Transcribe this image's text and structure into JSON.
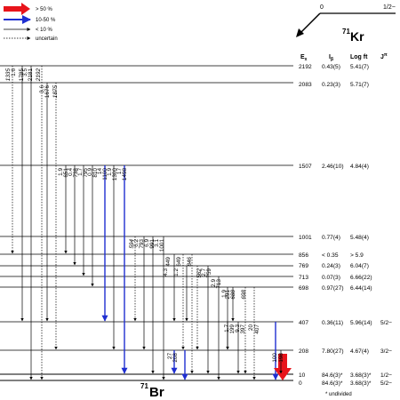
{
  "legend": {
    "items": [
      {
        "label": "> 50 %",
        "style": "red"
      },
      {
        "label": "10-50 %",
        "style": "blue"
      },
      {
        "label": "< 10 %",
        "style": "thin"
      },
      {
        "label": "uncertain",
        "style": "dotted"
      }
    ]
  },
  "parent": {
    "mass": "71",
    "element": "Kr",
    "level_left": "0",
    "spin": "1/2−"
  },
  "daughter": {
    "mass": "71",
    "element": "Br"
  },
  "columns": {
    "energy": "E",
    "energy_sub": "x",
    "ib": "I",
    "ib_sub": "β",
    "logft": "Log ft",
    "jpi": "J",
    "jpi_sup": "π"
  },
  "footnote": "* undivided",
  "levels": [
    {
      "energy": "2192",
      "ib": "0.43(5)",
      "logft": "5.41(7)",
      "jpi": ""
    },
    {
      "energy": "2083",
      "ib": "0.23(3)",
      "logft": "5.71(7)",
      "jpi": ""
    },
    {
      "energy": "1507",
      "ib": "2.46(10)",
      "logft": "4.84(4)",
      "jpi": ""
    },
    {
      "energy": "1001",
      "ib": "0.77(4)",
      "logft": "5.48(4)",
      "jpi": ""
    },
    {
      "energy": "856",
      "ib": "< 0.35",
      "logft": "> 5.9",
      "jpi": ""
    },
    {
      "energy": "769",
      "ib": "0.24(3)",
      "logft": "6.04(7)",
      "jpi": ""
    },
    {
      "energy": "713",
      "ib": "0.07(3)",
      "logft": "6.66(22)",
      "jpi": ""
    },
    {
      "energy": "698",
      "ib": "0.97(27)",
      "logft": "6.44(14)",
      "jpi": ""
    },
    {
      "energy": "407",
      "ib": "0.36(11)",
      "logft": "5.96(14)",
      "jpi": "5/2−"
    },
    {
      "energy": "208",
      "ib": "7.80(27)",
      "logft": "4.67(4)",
      "jpi": "3/2−"
    },
    {
      "energy": "10",
      "ib": "84.6(3)*",
      "logft": "3.68(3)*",
      "jpi": "1/2−"
    },
    {
      "energy": "0",
      "ib": "84.6(3)*",
      "logft": "3.68(3)*",
      "jpi": "5/2−"
    }
  ],
  "transitions": [
    {
      "label": "1335",
      "from": "2192",
      "to": "856",
      "style": "dotted",
      "italic": true
    },
    {
      "label": "1.6",
      "from": "2192",
      "to": "407",
      "style": "thin",
      "italic": false
    },
    {
      "label": "1785",
      "from": "2192",
      "to": "407",
      "style": "thin",
      "italic": false
    },
    {
      "label": "3.5",
      "from": "2192",
      "to": "0",
      "style": "thin",
      "italic": false
    },
    {
      "label": "2181",
      "from": "2192",
      "to": "10",
      "style": "thin",
      "italic": false
    },
    {
      "label": "2192",
      "from": "2192",
      "to": "0",
      "style": "dotted",
      "italic": true
    },
    {
      "label": "3.6",
      "from": "2083",
      "to": "407",
      "style": "thin",
      "italic": false
    },
    {
      "label": "1676",
      "from": "2083",
      "to": "407",
      "style": "thin",
      "italic": false
    },
    {
      "label": "1875",
      "from": "2083",
      "to": "208",
      "style": "dotted",
      "italic": true
    },
    {
      "label": "1.9",
      "from": "1507",
      "to": "856",
      "style": "thin",
      "italic": false
    },
    {
      "label": "651",
      "from": "1507",
      "to": "856",
      "style": "thin",
      "italic": false
    },
    {
      "label": "0.4",
      "from": "1507",
      "to": "769",
      "style": "thin",
      "italic": false
    },
    {
      "label": "738",
      "from": "1507",
      "to": "769",
      "style": "thin",
      "italic": false
    },
    {
      "label": "1.7",
      "from": "1507",
      "to": "713",
      "style": "thin",
      "italic": false
    },
    {
      "label": "795",
      "from": "1507",
      "to": "713",
      "style": "thin",
      "italic": false
    },
    {
      "label": "0.9",
      "from": "1507",
      "to": "698",
      "style": "thin",
      "italic": false
    },
    {
      "label": "810",
      "from": "1507",
      "to": "698",
      "style": "thin",
      "italic": false
    },
    {
      "label": "14",
      "from": "1507",
      "to": "407",
      "style": "blue",
      "italic": false
    },
    {
      "label": "1100",
      "from": "1507",
      "to": "407",
      "style": "blue",
      "italic": false
    },
    {
      "label": "1.9",
      "from": "1507",
      "to": "208",
      "style": "thin",
      "italic": false
    },
    {
      "label": "1300",
      "from": "1507",
      "to": "208",
      "style": "thin",
      "italic": false
    },
    {
      "label": "17",
      "from": "1507",
      "to": "10",
      "style": "blue",
      "italic": false
    },
    {
      "label": "1498",
      "from": "1507",
      "to": "10",
      "style": "blue",
      "italic": false
    },
    {
      "label": "594",
      "from": "1001",
      "to": "407",
      "style": "dotted",
      "italic": true
    },
    {
      "label": "6.2",
      "from": "1001",
      "to": "208",
      "style": "thin",
      "italic": false
    },
    {
      "label": "793",
      "from": "1001",
      "to": "208",
      "style": "thin",
      "italic": false
    },
    {
      "label": "6.9",
      "from": "1001",
      "to": "10",
      "style": "thin",
      "italic": false
    },
    {
      "label": "991",
      "from": "1001",
      "to": "10",
      "style": "thin",
      "italic": false
    },
    {
      "label": "3.1",
      "from": "1001",
      "to": "0",
      "style": "thin",
      "italic": false
    },
    {
      "label": "1001",
      "from": "1001",
      "to": "0",
      "style": "thin",
      "italic": false
    },
    {
      "label": "449",
      "from": "856",
      "to": "407",
      "style": "thin",
      "italic": false
    },
    {
      "label": "649",
      "from": "856",
      "to": "208",
      "style": "dotted",
      "italic": false
    },
    {
      "label": "846",
      "from": "856",
      "to": "10",
      "style": "dotted",
      "italic": true
    },
    {
      "label": "4.3",
      "from": "769",
      "to": "407",
      "style": "thin",
      "italic": false
    },
    {
      "label": "1.2",
      "from": "769",
      "to": "407",
      "style": "thin",
      "italic": false
    },
    {
      "label": "562",
      "from": "769",
      "to": "208",
      "style": "dotted",
      "italic": true
    },
    {
      "label": "2.7",
      "from": "769",
      "to": "10",
      "style": "thin",
      "italic": false
    },
    {
      "label": "759",
      "from": "769",
      "to": "10",
      "style": "thin",
      "italic": false
    },
    {
      "label": "2.9",
      "from": "713",
      "to": "0",
      "style": "thin",
      "italic": false
    },
    {
      "label": "713",
      "from": "713",
      "to": "0",
      "style": "thin",
      "italic": false
    },
    {
      "label": "1.9",
      "from": "698",
      "to": "208",
      "style": "thin",
      "italic": false
    },
    {
      "label": "291",
      "from": "698",
      "to": "407",
      "style": "thin",
      "italic": false
    },
    {
      "label": "688",
      "from": "698",
      "to": "10",
      "style": "dotted",
      "italic": true
    },
    {
      "label": "698",
      "from": "698",
      "to": "0",
      "style": "dotted",
      "italic": true
    },
    {
      "label": "1.7",
      "from": "407",
      "to": "208",
      "style": "thin",
      "italic": false
    },
    {
      "label": "199",
      "from": "407",
      "to": "208",
      "style": "thin",
      "italic": false
    },
    {
      "label": "9.3",
      "from": "407",
      "to": "10",
      "style": "thin",
      "italic": false
    },
    {
      "label": "397",
      "from": "407",
      "to": "10",
      "style": "thin",
      "italic": false
    },
    {
      "label": "20",
      "from": "407",
      "to": "0",
      "style": "blue",
      "italic": false
    },
    {
      "label": "407",
      "from": "407",
      "to": "0",
      "style": "blue",
      "italic": false
    },
    {
      "label": "27",
      "from": "208",
      "to": "10",
      "style": "blue",
      "italic": false
    },
    {
      "label": "208",
      "from": "208",
      "to": "0",
      "style": "blue",
      "italic": false
    },
    {
      "label": "100",
      "from": "208",
      "to": "0",
      "style": "red",
      "italic": false
    },
    {
      "label": "198",
      "from": "208",
      "to": "10",
      "style": "thin",
      "italic": false
    }
  ],
  "colors": {
    "strong": "#e8141b",
    "medium": "#1f2fd1",
    "line": "#000000"
  }
}
